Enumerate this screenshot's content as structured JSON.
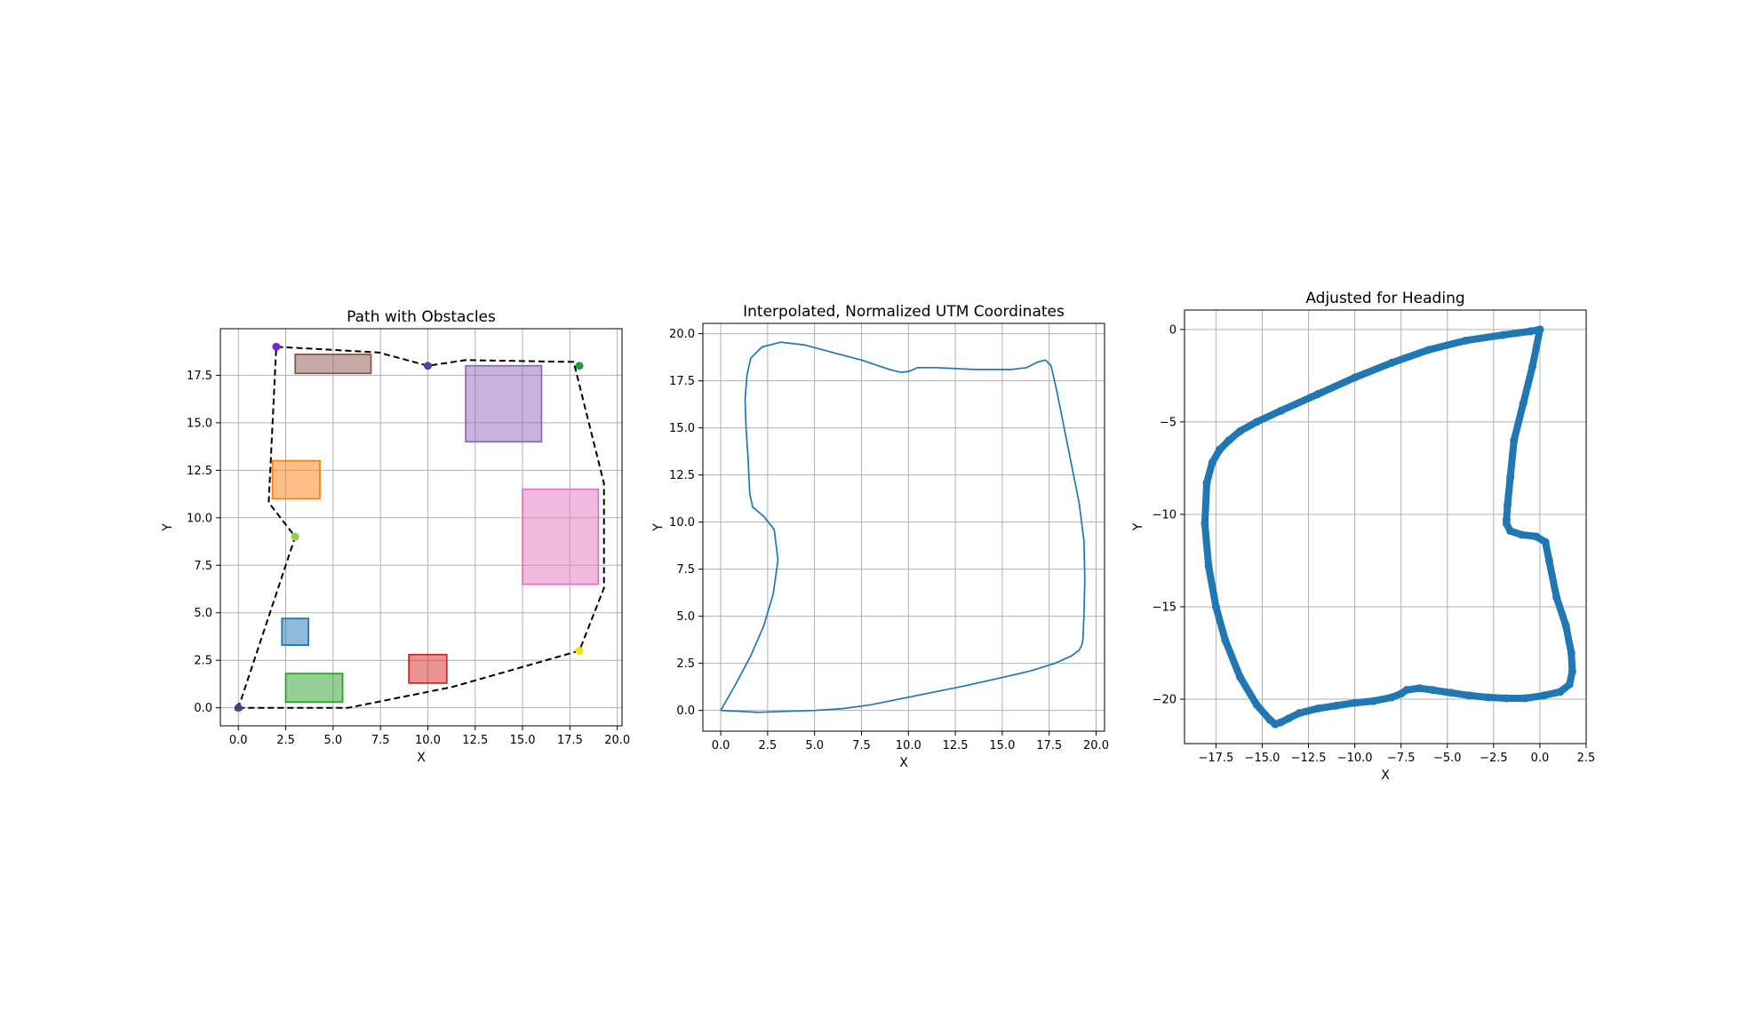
{
  "chart_data": [
    {
      "type": "line",
      "title": "Path with Obstacles",
      "xlabel": "X",
      "ylabel": "Y",
      "xlim": [
        -0.95,
        20.25
      ],
      "ylim": [
        -0.95,
        19.95
      ],
      "xticks": [
        0,
        2.5,
        5,
        7.5,
        10,
        12.5,
        15,
        17.5,
        20
      ],
      "yticks": [
        0,
        2.5,
        5,
        7.5,
        10,
        12.5,
        15,
        17.5
      ],
      "tick_decimals": 1,
      "grid": true,
      "obstacles": [
        {
          "x0": 2.3,
          "y0": 3.3,
          "x1": 3.7,
          "y1": 4.7,
          "color": "#1f77b4"
        },
        {
          "x0": 1.8,
          "y0": 11.0,
          "x1": 4.3,
          "y1": 13.0,
          "color": "#ff7f0e"
        },
        {
          "x0": 2.5,
          "y0": 0.3,
          "x1": 5.5,
          "y1": 1.8,
          "color": "#2ca02c"
        },
        {
          "x0": 9.0,
          "y0": 1.3,
          "x1": 11.0,
          "y1": 2.8,
          "color": "#d62728"
        },
        {
          "x0": 12.0,
          "y0": 14.0,
          "x1": 16.0,
          "y1": 18.0,
          "color": "#9467bd"
        },
        {
          "x0": 3.0,
          "y0": 17.6,
          "x1": 7.0,
          "y1": 18.6,
          "color": "#8c564b"
        },
        {
          "x0": 15.0,
          "y0": 6.5,
          "x1": 19.0,
          "y1": 11.5,
          "color": "#e377c2"
        }
      ],
      "series": [
        {
          "style": "dashed",
          "color": "#000000",
          "x": [
            0,
            5.8,
            11.3,
            18.0,
            19.3,
            19.3,
            17.7,
            12.0,
            10.0,
            7.4,
            2.0,
            1.6,
            3.0,
            0
          ],
          "y": [
            0,
            0,
            1.1,
            3.0,
            6.3,
            11.8,
            18.2,
            18.3,
            18.0,
            18.7,
            19.0,
            10.8,
            9.0,
            0
          ]
        }
      ],
      "waypoints": [
        {
          "x": 0,
          "y": 0,
          "color": "#d62728"
        },
        {
          "x": 3.0,
          "y": 9.0,
          "color": "#8fce5d"
        },
        {
          "x": 2.0,
          "y": 19.0,
          "color": "#6a2bd6"
        },
        {
          "x": 10.0,
          "y": 18.0,
          "color": "#4a47a3"
        },
        {
          "x": 18.0,
          "y": 18.0,
          "color": "#1f9d3a"
        },
        {
          "x": 18.0,
          "y": 3.0,
          "color": "#f2e400"
        }
      ],
      "start_marker": {
        "x": 0,
        "y": 0,
        "color": "#1f4e9c"
      }
    },
    {
      "type": "line",
      "title": "Interpolated, Normalized UTM Coordinates",
      "xlabel": "X",
      "ylabel": "Y",
      "xlim": [
        -0.95,
        20.45
      ],
      "ylim": [
        -1.1,
        20.55
      ],
      "xticks": [
        0,
        2.5,
        5,
        7.5,
        10,
        12.5,
        15,
        17.5,
        20
      ],
      "yticks": [
        0,
        2.5,
        5,
        7.5,
        10,
        12.5,
        15,
        17.5,
        20
      ],
      "tick_decimals": 1,
      "grid": true,
      "series": [
        {
          "color": "#1f77b4",
          "x": [
            0,
            0.8,
            1.6,
            2.3,
            2.8,
            3.05,
            2.85,
            2.3,
            1.7,
            1.55,
            1.5,
            1.45,
            1.35,
            1.3,
            1.4,
            1.6,
            2.2,
            3.2,
            4.5,
            6.0,
            7.5,
            9.0,
            9.6,
            10.0,
            10.5,
            11.5,
            12.5,
            13.5,
            14.5,
            15.5,
            16.3,
            16.9,
            17.3,
            17.6,
            17.9,
            18.3,
            18.7,
            19.1,
            19.35,
            19.4,
            19.35,
            19.3,
            19.25,
            19.1,
            18.7,
            17.8,
            16.5,
            15.0,
            13.0,
            10.5,
            8.0,
            6.5,
            5.0,
            3.5,
            2.0,
            1.0,
            0
          ],
          "y": [
            0,
            1.4,
            2.9,
            4.5,
            6.2,
            8.0,
            9.6,
            10.3,
            10.8,
            11.5,
            12.5,
            13.5,
            15.0,
            16.5,
            17.8,
            18.7,
            19.3,
            19.55,
            19.4,
            19.0,
            18.6,
            18.1,
            17.95,
            18.0,
            18.2,
            18.2,
            18.15,
            18.1,
            18.1,
            18.1,
            18.2,
            18.5,
            18.6,
            18.3,
            17.0,
            15.0,
            13.0,
            11.0,
            9.0,
            7.0,
            5.0,
            3.8,
            3.5,
            3.2,
            2.9,
            2.5,
            2.1,
            1.75,
            1.3,
            0.8,
            0.3,
            0.1,
            0,
            -0.05,
            -0.1,
            -0.05,
            0
          ]
        }
      ]
    },
    {
      "type": "scatter",
      "title": "Adjusted for Heading",
      "xlabel": "X",
      "ylabel": "Y",
      "xlim": [
        -19.2,
        2.5
      ],
      "ylim": [
        -22.4,
        1.05
      ],
      "xticks": [
        -17.5,
        -15,
        -12.5,
        -10,
        -7.5,
        -5,
        -2.5,
        0,
        2.5
      ],
      "yticks": [
        0,
        -5,
        -10,
        -15,
        -20
      ],
      "tick_decimals": 1,
      "ytick_decimals": 0,
      "grid": true,
      "series": [
        {
          "color": "#1f77b4",
          "x": [
            0,
            -0.4,
            -0.9,
            -1.4,
            -1.6,
            -1.75,
            -1.8,
            -1.8,
            -1.6,
            -1.0,
            -0.2,
            0.3,
            0.5,
            0.9,
            1.4,
            1.7,
            1.75,
            1.6,
            1.1,
            0.2,
            -0.8,
            -1.8,
            -2.8,
            -3.8,
            -4.8,
            -5.8,
            -6.5,
            -7.2,
            -7.5,
            -8.0,
            -9.0,
            -10.0,
            -11.0,
            -12.0,
            -13.0,
            -13.6,
            -14.0,
            -14.3,
            -14.6,
            -15.3,
            -16.2,
            -17.0,
            -17.5,
            -17.9,
            -18.1,
            -18.0,
            -17.7,
            -17.3,
            -16.8,
            -16.2,
            -15.3,
            -14.0,
            -12.0,
            -10.0,
            -8.0,
            -6.0,
            -4.0,
            -2.0,
            -0.5,
            0
          ],
          "y": [
            0,
            -2.0,
            -4.0,
            -6.0,
            -8.0,
            -9.5,
            -10.3,
            -10.5,
            -10.9,
            -11.1,
            -11.2,
            -11.5,
            -12.5,
            -14.5,
            -16.0,
            -17.5,
            -18.5,
            -19.2,
            -19.6,
            -19.8,
            -19.95,
            -19.95,
            -19.9,
            -19.8,
            -19.65,
            -19.5,
            -19.4,
            -19.5,
            -19.7,
            -19.9,
            -20.1,
            -20.2,
            -20.35,
            -20.5,
            -20.75,
            -21.05,
            -21.25,
            -21.35,
            -21.1,
            -20.3,
            -18.8,
            -16.8,
            -15.0,
            -12.8,
            -10.5,
            -8.3,
            -7.2,
            -6.5,
            -6.0,
            -5.5,
            -5.0,
            -4.4,
            -3.5,
            -2.6,
            -1.8,
            -1.1,
            -0.6,
            -0.3,
            -0.1,
            0
          ]
        }
      ]
    }
  ]
}
